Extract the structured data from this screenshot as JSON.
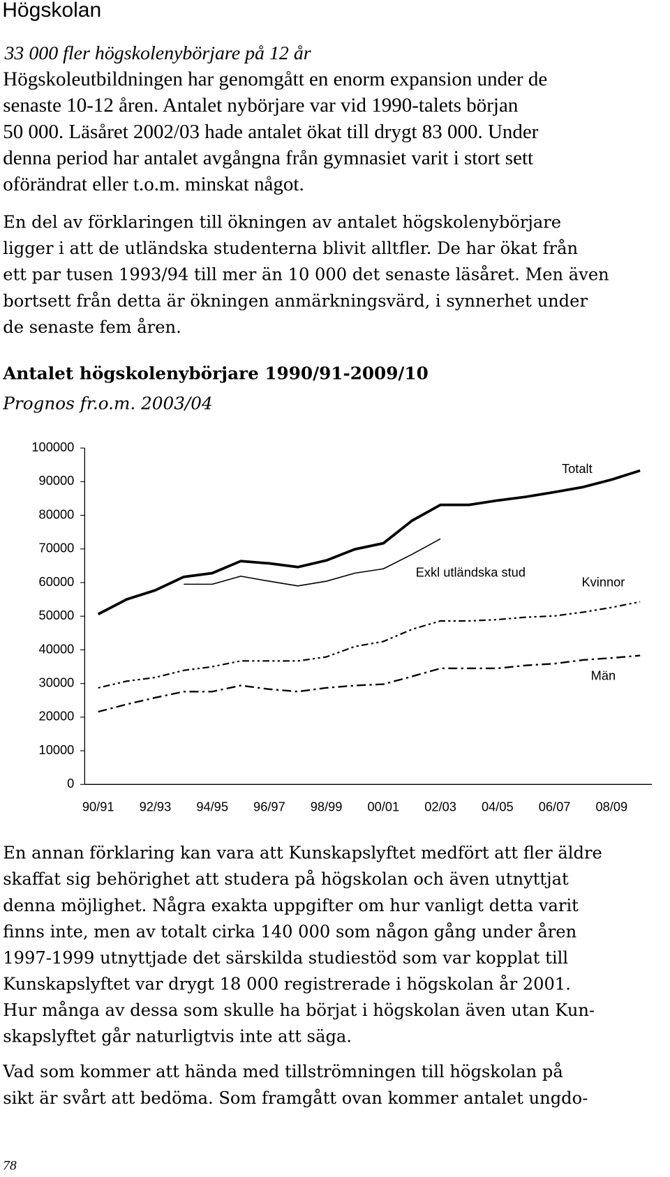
{
  "header": {
    "title": "Högskolan",
    "subtitle": "33 000 fler högskolenybörjare på 12 år"
  },
  "intro": [
    [
      "Högskoleutbildningen har genomgått en enorm expansion under de",
      "senaste 10-12 åren. Antalet nybörjare var vid 1990-talets början",
      "50 000. Läsåret 2002/03 hade antalet ökat till drygt 83 000. Under",
      "denna period har antalet avgångna från gymnasiet varit i stort sett",
      "oförändrat eller t.o.m. minskat något."
    ],
    [
      "En del av förklaringen till ökningen av antalet högskolenybörjare",
      "ligger i att de utländska studenterna blivit alltfler. De har ökat från",
      "ett par tusen 1993/94 till mer än 10 000 det senaste läsåret. Men även",
      "bortsett från detta är ökningen anmärkningsvärd, i synnerhet under",
      "de senaste fem åren."
    ]
  ],
  "chart_data": {
    "type": "line",
    "title": "Antalet högskolenybörjare 1990/91-2009/10",
    "subtitle": "Prognos fr.o.m. 2003/04",
    "categories": [
      "90/91",
      null,
      "92/93",
      null,
      "94/95",
      null,
      "96/97",
      null,
      "98/99",
      null,
      "00/01",
      null,
      "02/03",
      null,
      "04/05",
      null,
      "06/07",
      null,
      "08/09",
      null
    ],
    "ylim": [
      0,
      100000
    ],
    "yticks": [
      0,
      10000,
      20000,
      30000,
      40000,
      50000,
      60000,
      70000,
      80000,
      90000,
      100000
    ],
    "grid": false,
    "series": [
      {
        "name": "Totalt",
        "color": "#000000",
        "style": "thick",
        "values": [
          50600,
          55000,
          57700,
          61700,
          62800,
          66400,
          65700,
          64600,
          66600,
          69900,
          71700,
          78400,
          83100,
          83100,
          84400,
          85500,
          86900,
          88400,
          90600,
          93300
        ]
      },
      {
        "name": "Exkl utländska stud",
        "color": "#000000",
        "style": "solid",
        "values": [
          null,
          null,
          null,
          59500,
          59500,
          61900,
          60400,
          59000,
          60400,
          62800,
          64100,
          68400,
          73000,
          null,
          null,
          null,
          null,
          null,
          null,
          null
        ]
      },
      {
        "name": "Kvinnor",
        "color": "#000000",
        "style": "dotted",
        "values": [
          28700,
          30700,
          31800,
          33900,
          35000,
          36700,
          36700,
          36700,
          37900,
          41000,
          42500,
          46100,
          48600,
          48600,
          49000,
          49700,
          50100,
          51200,
          52600,
          54300
        ]
      },
      {
        "name": "Män",
        "color": "#000000",
        "style": "dashdot",
        "values": [
          21600,
          23800,
          25800,
          27600,
          27600,
          29400,
          28300,
          27600,
          28700,
          29400,
          29800,
          32100,
          34500,
          34500,
          34500,
          35400,
          35900,
          37000,
          37600,
          38300
        ]
      }
    ]
  },
  "body": [
    [
      "En annan förklaring kan vara att Kunskapslyftet medfört att fler äldre",
      "skaffat sig behörighet att studera på högskolan och även utnyttjat",
      "denna möjlighet. Några exakta uppgifter om hur vanligt detta varit",
      "finns inte, men av totalt cirka 140 000 som någon gång under åren",
      "1997-1999 utnyttjade det särskilda studiestöd som var kopplat till",
      "Kunskapslyftet var drygt 18 000 registrerade i högskolan år 2001.",
      "Hur många av dessa som skulle ha börjat i högskolan även utan Kun-",
      "skapslyftet går naturligtvis inte att säga."
    ],
    [
      "Vad som kommer att hända med tillströmningen till högskolan på",
      "sikt är svårt att bedöma. Som framgått ovan kommer antalet ungdo-"
    ]
  ],
  "footer": {
    "page_number": "78"
  }
}
